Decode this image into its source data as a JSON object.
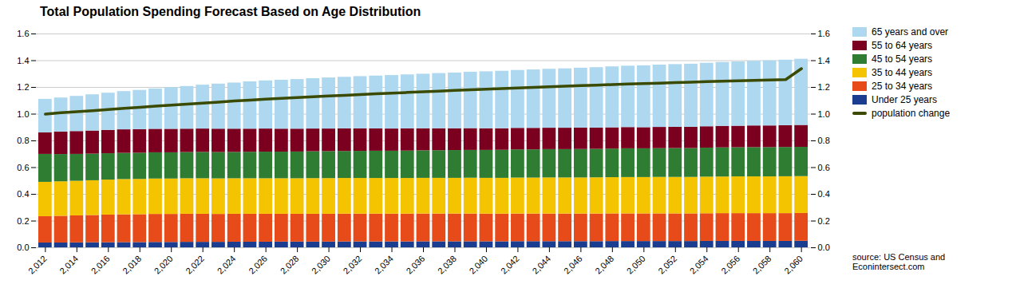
{
  "chart_data": {
    "type": "bar",
    "stacked": true,
    "title": "Total Population Spending Forecast Based on Age Distribution",
    "categories": [
      2012,
      null,
      2014,
      null,
      2016,
      null,
      2018,
      null,
      2020,
      null,
      2022,
      null,
      2024,
      null,
      2026,
      null,
      2028,
      null,
      2030,
      null,
      2032,
      null,
      2034,
      null,
      2036,
      null,
      2038,
      null,
      2040,
      null,
      2042,
      null,
      2044,
      null,
      2046,
      null,
      2048,
      null,
      2050,
      null,
      2052,
      null,
      2054,
      null,
      2056,
      null,
      2058,
      null,
      2060
    ],
    "series": [
      {
        "name": "Under 25 years",
        "type": "bar",
        "color": "#1a3d8f",
        "values": [
          0.036,
          0.036,
          0.037,
          0.038,
          0.038,
          0.039,
          0.039,
          0.04,
          0.04,
          0.041,
          0.041,
          0.041,
          0.042,
          0.042,
          0.042,
          0.043,
          0.043,
          0.043,
          0.043,
          0.044,
          0.044,
          0.044,
          0.044,
          0.044,
          0.045,
          0.045,
          0.045,
          0.045,
          0.045,
          0.045,
          0.046,
          0.046,
          0.046,
          0.046,
          0.046,
          0.046,
          0.047,
          0.047,
          0.047,
          0.047,
          0.047,
          0.047,
          0.048,
          0.048,
          0.048,
          0.048,
          0.048,
          0.048,
          0.049
        ]
      },
      {
        "name": "25 to 34 years",
        "type": "bar",
        "color": "#e84b1a",
        "values": [
          0.197,
          0.2,
          0.202,
          0.204,
          0.207,
          0.208,
          0.209,
          0.21,
          0.21,
          0.21,
          0.21,
          0.209,
          0.209,
          0.209,
          0.209,
          0.208,
          0.208,
          0.208,
          0.208,
          0.208,
          0.208,
          0.208,
          0.208,
          0.208,
          0.208,
          0.208,
          0.208,
          0.208,
          0.207,
          0.207,
          0.207,
          0.207,
          0.207,
          0.207,
          0.207,
          0.207,
          0.207,
          0.207,
          0.207,
          0.207,
          0.207,
          0.207,
          0.207,
          0.208,
          0.208,
          0.208,
          0.208,
          0.208,
          0.208
        ]
      },
      {
        "name": "35 to 44 years",
        "type": "bar",
        "color": "#f5c400",
        "values": [
          0.257,
          0.258,
          0.259,
          0.26,
          0.262,
          0.264,
          0.264,
          0.265,
          0.265,
          0.266,
          0.266,
          0.266,
          0.266,
          0.266,
          0.266,
          0.266,
          0.266,
          0.267,
          0.267,
          0.267,
          0.267,
          0.267,
          0.267,
          0.267,
          0.267,
          0.267,
          0.267,
          0.268,
          0.268,
          0.268,
          0.269,
          0.269,
          0.27,
          0.27,
          0.27,
          0.271,
          0.271,
          0.272,
          0.272,
          0.273,
          0.273,
          0.273,
          0.274,
          0.274,
          0.275,
          0.275,
          0.275,
          0.276,
          0.276
        ]
      },
      {
        "name": "45 to 54 years",
        "type": "bar",
        "color": "#2e7d32",
        "values": [
          0.209,
          0.204,
          0.201,
          0.199,
          0.197,
          0.196,
          0.196,
          0.196,
          0.196,
          0.196,
          0.197,
          0.197,
          0.197,
          0.198,
          0.199,
          0.199,
          0.2,
          0.201,
          0.202,
          0.202,
          0.203,
          0.204,
          0.204,
          0.205,
          0.206,
          0.207,
          0.208,
          0.208,
          0.209,
          0.21,
          0.211,
          0.211,
          0.212,
          0.212,
          0.213,
          0.213,
          0.214,
          0.215,
          0.215,
          0.215,
          0.216,
          0.216,
          0.217,
          0.218,
          0.218,
          0.219,
          0.219,
          0.219,
          0.219
        ]
      },
      {
        "name": "55 to 64 years",
        "type": "bar",
        "color": "#7b0020",
        "values": [
          0.162,
          0.168,
          0.171,
          0.173,
          0.175,
          0.176,
          0.176,
          0.176,
          0.176,
          0.175,
          0.175,
          0.175,
          0.174,
          0.173,
          0.173,
          0.172,
          0.171,
          0.17,
          0.169,
          0.169,
          0.168,
          0.167,
          0.166,
          0.166,
          0.165,
          0.164,
          0.163,
          0.163,
          0.162,
          0.161,
          0.161,
          0.161,
          0.16,
          0.16,
          0.16,
          0.159,
          0.159,
          0.159,
          0.158,
          0.159,
          0.159,
          0.159,
          0.16,
          0.161,
          0.161,
          0.162,
          0.162,
          0.163,
          0.164
        ]
      },
      {
        "name": "65 years and over",
        "type": "bar",
        "color": "#add8f0",
        "values": [
          0.25,
          0.255,
          0.263,
          0.271,
          0.278,
          0.286,
          0.294,
          0.302,
          0.311,
          0.319,
          0.328,
          0.337,
          0.345,
          0.354,
          0.36,
          0.366,
          0.371,
          0.377,
          0.382,
          0.386,
          0.391,
          0.395,
          0.4,
          0.404,
          0.408,
          0.413,
          0.417,
          0.422,
          0.426,
          0.43,
          0.433,
          0.437,
          0.441,
          0.444,
          0.448,
          0.452,
          0.456,
          0.459,
          0.463,
          0.466,
          0.469,
          0.472,
          0.475,
          0.478,
          0.481,
          0.484,
          0.487,
          0.49,
          0.495
        ]
      },
      {
        "name": "population change",
        "type": "line",
        "axis": "y2",
        "color": "#3a4a00",
        "values": [
          1.0,
          1.01,
          1.018,
          1.026,
          1.035,
          1.043,
          1.051,
          1.059,
          1.067,
          1.074,
          1.082,
          1.09,
          1.098,
          1.105,
          1.112,
          1.118,
          1.124,
          1.13,
          1.136,
          1.141,
          1.147,
          1.152,
          1.157,
          1.162,
          1.167,
          1.172,
          1.177,
          1.182,
          1.187,
          1.191,
          1.196,
          1.2,
          1.205,
          1.209,
          1.213,
          1.217,
          1.221,
          1.225,
          1.229,
          1.232,
          1.236,
          1.239,
          1.243,
          1.246,
          1.249,
          1.252,
          1.255,
          1.258,
          1.34
        ]
      }
    ],
    "ylim": [
      0.0,
      1.6
    ],
    "yticks": [
      {
        "value": 0,
        "label": "0.0"
      },
      0.2,
      0.4,
      0.6,
      0.8,
      {
        "value": 1,
        "label": "1.0"
      },
      1.2,
      1.4,
      1.6
    ],
    "y2lim": [
      0.0,
      1.6
    ],
    "y2ticks": [
      {
        "value": 0,
        "label": "0.0"
      },
      0.2,
      0.4,
      0.6,
      0.8,
      {
        "value": 1,
        "label": "1.0"
      },
      1.2,
      1.4,
      1.6
    ],
    "grid": true,
    "legend": "right",
    "annotations": [
      "source: US Census and\nEconintersect.com"
    ]
  }
}
